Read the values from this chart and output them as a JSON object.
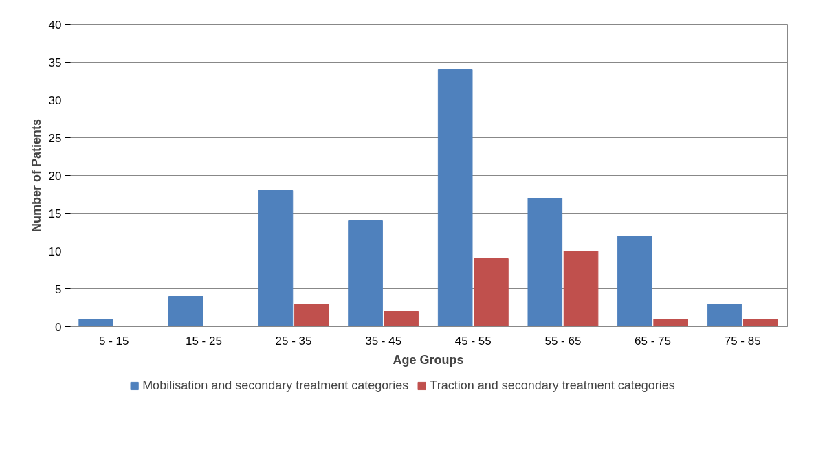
{
  "chart_data": {
    "type": "bar",
    "xlabel": "Age Groups",
    "ylabel": "Number of Patients",
    "categories": [
      "5 - 15",
      "15 - 25",
      "25 - 35",
      "35 - 45",
      "45 - 55",
      "55 - 65",
      "65 - 75",
      "75 - 85"
    ],
    "series": [
      {
        "name": "Mobilisation and secondary treatment categories",
        "color": "#4f81bd",
        "values": [
          1,
          4,
          18,
          14,
          34,
          17,
          12,
          3
        ]
      },
      {
        "name": "Traction and secondary treatment categories",
        "color": "#c0504d",
        "values": [
          0,
          0,
          3,
          2,
          9,
          10,
          1,
          1
        ]
      }
    ],
    "ylim": [
      0,
      40
    ],
    "yticks": [
      0,
      5,
      10,
      15,
      20,
      25,
      30,
      35,
      40
    ],
    "grid": "y",
    "legend": "bottom"
  }
}
